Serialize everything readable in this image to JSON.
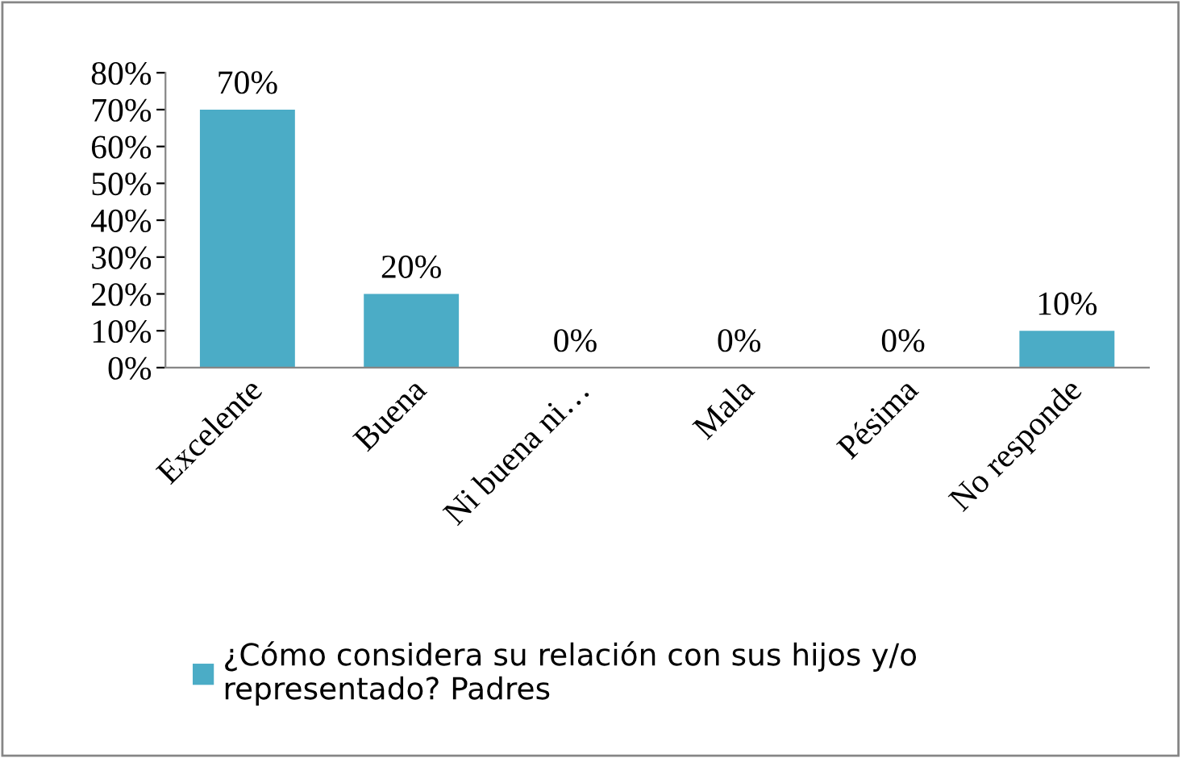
{
  "chart_data": {
    "type": "bar",
    "categories": [
      "Excelente",
      "Buena",
      "Ni buena ni…",
      "Mala",
      "Pésima",
      "No responde"
    ],
    "series": [
      {
        "name": "¿Cómo considera su relación con sus hijos y/o\nrepresentado? Padres",
        "color": "#4bacc6",
        "values": [
          70,
          20,
          0,
          0,
          0,
          10
        ],
        "value_labels": [
          "70%",
          "20%",
          "0%",
          "0%",
          "0%",
          "10%"
        ]
      }
    ],
    "ylim": [
      0,
      80
    ],
    "yticks": [
      {
        "value": 0,
        "label": "0%"
      },
      {
        "value": 10,
        "label": "10%"
      },
      {
        "value": 20,
        "label": "20%"
      },
      {
        "value": 30,
        "label": "30%"
      },
      {
        "value": 40,
        "label": "40%"
      },
      {
        "value": 50,
        "label": "50%"
      },
      {
        "value": 60,
        "label": "60%"
      },
      {
        "value": 70,
        "label": "70%"
      },
      {
        "value": 80,
        "label": "80%"
      }
    ],
    "grid": false,
    "legend": "bottom"
  }
}
